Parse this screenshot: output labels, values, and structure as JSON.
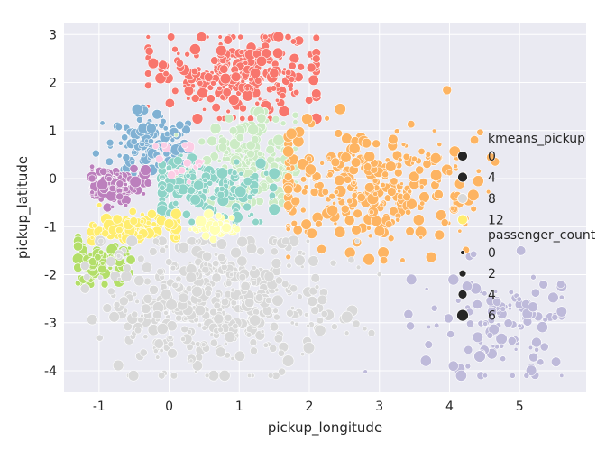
{
  "chart_data": {
    "type": "scatter",
    "xlabel": "pickup_longitude",
    "ylabel": "pickup_latitude",
    "xlim": [
      -1.5,
      5.95
    ],
    "ylim": [
      -4.45,
      3.25
    ],
    "xticks": [
      -1,
      0,
      1,
      2,
      3,
      4,
      5
    ],
    "yticks": [
      -4,
      -3,
      -2,
      -1,
      0,
      1,
      2,
      3
    ],
    "grid": true,
    "background": "#eaeaf2",
    "legend_position": "right",
    "hue": {
      "title": "kmeans_pickup",
      "legend_values": [
        "0",
        "4",
        "8",
        "12"
      ],
      "legend_colors": [
        "#262626",
        "#262626",
        "#d9d9d9",
        "#ffed6f"
      ]
    },
    "size": {
      "title": "passenger_count",
      "legend_values": [
        "0",
        "2",
        "4",
        "6"
      ]
    },
    "clusters": [
      {
        "id": 0,
        "color": "#f8766d",
        "cx": 0.95,
        "cy": 2.2,
        "sx": 0.6,
        "sy": 0.45,
        "n": 260,
        "xr": [
          -0.3,
          2.1
        ],
        "yr": [
          1.25,
          2.95
        ]
      },
      {
        "id": 1,
        "color": "#80b1d3",
        "cx": -0.3,
        "cy": 0.7,
        "sx": 0.35,
        "sy": 0.35,
        "n": 110,
        "xr": [
          -1.2,
          0.3
        ],
        "yr": [
          0.1,
          1.45
        ]
      },
      {
        "id": 2,
        "color": "#ccebc5",
        "cx": 1.1,
        "cy": 0.4,
        "sx": 0.45,
        "sy": 0.5,
        "n": 180,
        "xr": [
          0.1,
          1.8
        ],
        "yr": [
          -0.5,
          1.4
        ]
      },
      {
        "id": 3,
        "color": "#8dd3c7",
        "cx": 0.5,
        "cy": -0.2,
        "sx": 0.55,
        "sy": 0.3,
        "n": 160,
        "xr": [
          -0.1,
          1.5
        ],
        "yr": [
          -0.9,
          0.5
        ]
      },
      {
        "id": 4,
        "color": "#b3de69",
        "cx": -1.0,
        "cy": -1.7,
        "sx": 0.2,
        "sy": 0.25,
        "n": 80,
        "xr": [
          -1.3,
          -0.5
        ],
        "yr": [
          -2.2,
          -1.2
        ]
      },
      {
        "id": 5,
        "color": "#bc80bd",
        "cx": -0.75,
        "cy": -0.15,
        "sx": 0.25,
        "sy": 0.2,
        "n": 90,
        "xr": [
          -1.1,
          -0.3
        ],
        "yr": [
          -0.6,
          0.25
        ]
      },
      {
        "id": 6,
        "color": "#fdb462",
        "cx": 2.9,
        "cy": -0.2,
        "sx": 0.8,
        "sy": 0.6,
        "n": 320,
        "xr": [
          1.7,
          5.6
        ],
        "yr": [
          -1.7,
          2.95
        ]
      },
      {
        "id": 7,
        "color": "#ffed6f",
        "cx": -0.55,
        "cy": -1.05,
        "sx": 0.3,
        "sy": 0.18,
        "n": 100,
        "xr": [
          -1.1,
          0.1
        ],
        "yr": [
          -1.45,
          -0.55
        ]
      },
      {
        "id": 8,
        "color": "#d9d9d9",
        "cx": 0.7,
        "cy": -2.6,
        "sx": 0.8,
        "sy": 0.75,
        "n": 460,
        "xr": [
          -1.2,
          3.0
        ],
        "yr": [
          -4.1,
          -1.3
        ]
      },
      {
        "id": 9,
        "color": "#bebada",
        "cx": 4.8,
        "cy": -3.0,
        "sx": 0.6,
        "sy": 0.6,
        "n": 120,
        "xr": [
          2.8,
          5.6
        ],
        "yr": [
          -4.1,
          -1.5
        ]
      },
      {
        "id": 10,
        "color": "#fccde5",
        "cx": 0.2,
        "cy": 0.3,
        "sx": 0.2,
        "sy": 0.2,
        "n": 15,
        "xr": [
          -0.2,
          0.6
        ],
        "yr": [
          -0.1,
          0.7
        ]
      },
      {
        "id": 11,
        "color": "#ffffb3",
        "cx": 0.6,
        "cy": -1.0,
        "sx": 0.2,
        "sy": 0.12,
        "n": 40,
        "xr": [
          0.3,
          1.0
        ],
        "yr": [
          -1.3,
          -0.7
        ]
      }
    ]
  }
}
